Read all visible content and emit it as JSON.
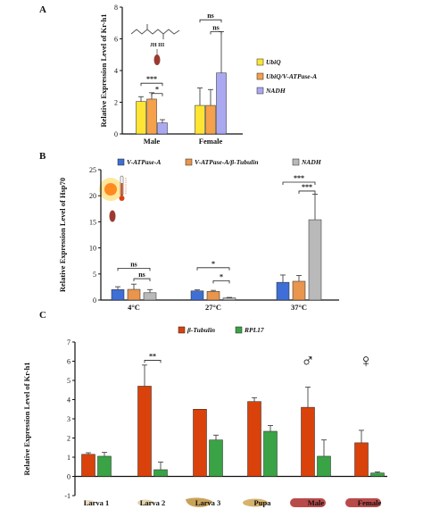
{
  "panels": [
    {
      "letter": "A"
    },
    {
      "letter": "B"
    },
    {
      "letter": "C"
    }
  ],
  "colors": {
    "yellow": "#ffe533",
    "orange": "#f5a04a",
    "lavender": "#aba8f2",
    "blue": "#3f6fd6",
    "tan": "#e8954d",
    "gray": "#b9b9b9",
    "red": "#d9420b",
    "green": "#3aa346"
  },
  "decor": {
    "structure_label": "JH III",
    "male_symbol": "♂",
    "female_symbol": "♀"
  },
  "chart_data": [
    {
      "type": "bar",
      "panel": "A",
      "title": "",
      "xlabel": "",
      "ylabel": "Relative Expression Level of Kr-h1",
      "ylim": [
        0,
        8
      ],
      "yticks": [
        0,
        2,
        4,
        6,
        8
      ],
      "categories": [
        "Male",
        "Female"
      ],
      "legend_position": "right",
      "series": [
        {
          "name": "UbiQ",
          "values": [
            2.05,
            1.8
          ],
          "errors": [
            0.3,
            1.1
          ],
          "color": "#ffe533"
        },
        {
          "name": "UbiQ/V-ATPase-A",
          "values": [
            2.2,
            1.8
          ],
          "errors": [
            0.4,
            1.0
          ],
          "color": "#f5a04a"
        },
        {
          "name": "NADH",
          "values": [
            0.7,
            3.85
          ],
          "errors": [
            0.2,
            2.6
          ],
          "color": "#aba8f2"
        }
      ],
      "annotations": [
        {
          "text": "***",
          "category": 0,
          "from": 0,
          "to": 2,
          "level": 3.2
        },
        {
          "text": "*",
          "category": 0,
          "from": 1,
          "to": 2,
          "level": 2.55
        },
        {
          "text": "ns",
          "category": 1,
          "from": 0,
          "to": 2,
          "level": 7.2
        },
        {
          "text": "ns",
          "category": 1,
          "from": 1,
          "to": 2,
          "level": 6.45
        }
      ]
    },
    {
      "type": "bar",
      "panel": "B",
      "title": "",
      "xlabel": "",
      "ylabel": "Relative Expression Level of Hsp70",
      "ylim": [
        0,
        25
      ],
      "yticks": [
        0,
        5,
        10,
        15,
        20,
        25
      ],
      "categories": [
        "4°C",
        "27°C",
        "37°C"
      ],
      "legend_position": "top",
      "series": [
        {
          "name": "V-ATPase-A",
          "values": [
            2.0,
            1.75,
            3.4
          ],
          "errors": [
            0.55,
            0.2,
            1.4
          ],
          "color": "#3f6fd6"
        },
        {
          "name": "V-ATPase-A/β-Tubulin",
          "values": [
            2.05,
            1.65,
            3.6
          ],
          "errors": [
            1.0,
            0.2,
            1.1
          ],
          "color": "#e8954d"
        },
        {
          "name": "NADH",
          "values": [
            1.4,
            0.4,
            15.4
          ],
          "errors": [
            0.6,
            0.1,
            4.9
          ],
          "color": "#b9b9b9"
        }
      ],
      "annotations": [
        {
          "text": "ns",
          "category": 0,
          "from": 0,
          "to": 2,
          "level": 6.1
        },
        {
          "text": "ns",
          "category": 0,
          "from": 1,
          "to": 2,
          "level": 4.1
        },
        {
          "text": "*",
          "category": 1,
          "from": 0,
          "to": 2,
          "level": 6.2
        },
        {
          "text": "*",
          "category": 1,
          "from": 1,
          "to": 2,
          "level": 3.7
        },
        {
          "text": "***",
          "category": 2,
          "from": 0,
          "to": 2,
          "level": 22.6
        },
        {
          "text": "***",
          "category": 2,
          "from": 1,
          "to": 2,
          "level": 20.9
        }
      ]
    },
    {
      "type": "bar",
      "panel": "C",
      "title": "",
      "xlabel": "",
      "ylabel": "Relative Expression Level of Kr-h1",
      "ylim": [
        -1,
        7
      ],
      "yticks": [
        -1,
        0,
        1,
        2,
        3,
        4,
        5,
        6,
        7
      ],
      "categories": [
        "Larva 1",
        "Larva 2",
        "Larva 3",
        "Pupa",
        "Male",
        "Female"
      ],
      "legend_position": "top",
      "series": [
        {
          "name": "β-Tubulin",
          "values": [
            1.15,
            4.7,
            3.5,
            3.9,
            3.6,
            1.75
          ],
          "errors": [
            0.08,
            1.1,
            0.0,
            0.2,
            1.05,
            0.65
          ],
          "color": "#d9420b"
        },
        {
          "name": "RPL17",
          "values": [
            1.05,
            0.35,
            1.9,
            2.35,
            1.05,
            0.18
          ],
          "errors": [
            0.2,
            0.4,
            0.25,
            0.3,
            0.85,
            0.05
          ],
          "color": "#3aa346"
        }
      ],
      "annotations": [
        {
          "text": "**",
          "category": 1,
          "from": 0,
          "to": 1,
          "level": 6.05
        }
      ]
    }
  ]
}
